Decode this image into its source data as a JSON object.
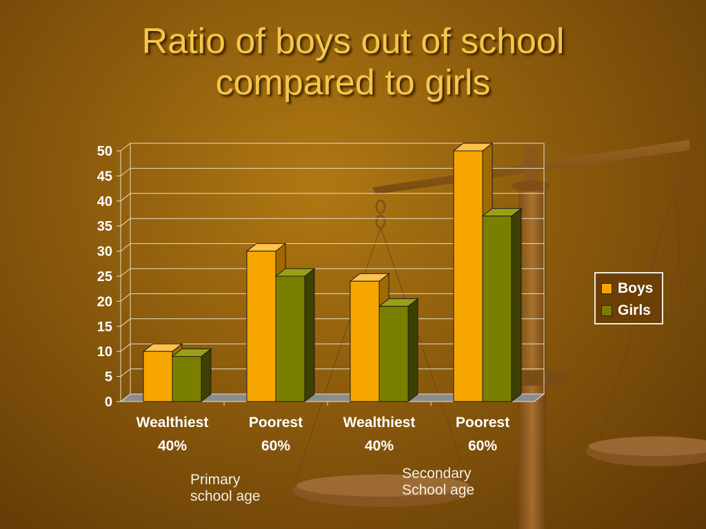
{
  "title": {
    "line1": "Ratio of boys out of school",
    "line2": "compared to girls"
  },
  "colors": {
    "boys": "#F7A600",
    "girls": "#7A7F00",
    "title": "#F3C84A"
  },
  "chart_data": {
    "type": "bar",
    "categories": [
      [
        "Wealthiest",
        "40%"
      ],
      [
        "Poorest",
        "60%"
      ],
      [
        "Wealthiest",
        "40%"
      ],
      [
        "Poorest",
        "60%"
      ]
    ],
    "series": [
      {
        "name": "Boys",
        "values": [
          10,
          30,
          24,
          50
        ]
      },
      {
        "name": "Girls",
        "values": [
          9,
          25,
          19,
          37
        ]
      }
    ],
    "ylim": [
      0,
      50
    ],
    "yticks": [
      "0",
      "5",
      "10",
      "15",
      "20",
      "25",
      "30",
      "35",
      "40",
      "45",
      "50"
    ],
    "grid": true,
    "legend_position": "right",
    "group_labels": [
      {
        "line1": "Primary",
        "line2": "school age"
      },
      {
        "line1": "Secondary",
        "line2": "School age"
      }
    ]
  },
  "legend": {
    "boys": "Boys",
    "girls": "Girls"
  }
}
